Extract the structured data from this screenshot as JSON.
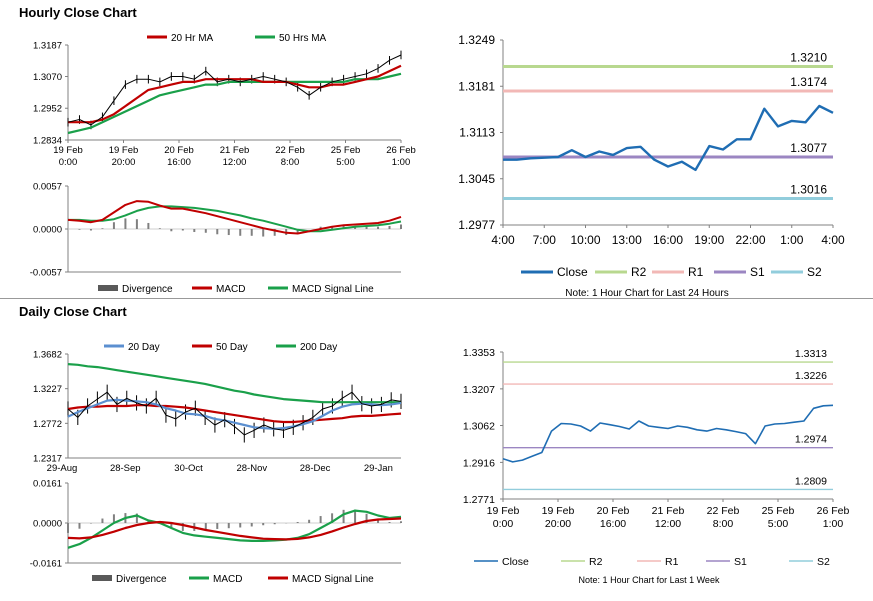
{
  "sections": {
    "hourly": {
      "title": "Hourly Close Chart"
    },
    "daily": {
      "title": "Daily Close Chart"
    }
  },
  "colors": {
    "close": "#1f6db3",
    "ma_short": "#c00000",
    "ma_long": "#1aa04a",
    "ma_20day": "#5b8fd0",
    "r2": "#b8d88f",
    "r1": "#f2b8b6",
    "s1": "#9b86c2",
    "s2": "#92cddc",
    "divergence": "#808080"
  },
  "chart_data": [
    {
      "id": "hourly_price",
      "type": "line",
      "ylim": [
        1.2834,
        1.3187
      ],
      "y_ticks": [
        "1.3187",
        "1.3070",
        "1.2952",
        "1.2834"
      ],
      "x_ticks": [
        [
          "19 Feb",
          "0:00"
        ],
        [
          "19 Feb",
          "20:00"
        ],
        [
          "20 Feb",
          "16:00"
        ],
        [
          "21 Feb",
          "12:00"
        ],
        [
          "22 Feb",
          "8:00"
        ],
        [
          "25 Feb",
          "5:00"
        ],
        [
          "26 Feb",
          "1:00"
        ]
      ],
      "legend": [
        "20 Hr MA",
        "50 Hrs MA"
      ],
      "series": [
        {
          "name": "Close",
          "values": [
            1.29,
            1.291,
            1.289,
            1.292,
            1.298,
            1.304,
            1.306,
            1.306,
            1.305,
            1.307,
            1.307,
            1.306,
            1.309,
            1.305,
            1.306,
            1.305,
            1.306,
            1.307,
            1.306,
            1.305,
            1.303,
            1.3,
            1.303,
            1.305,
            1.306,
            1.307,
            1.308,
            1.31,
            1.313,
            1.315
          ]
        },
        {
          "name": "20 Hr MA",
          "values": [
            1.29,
            1.29,
            1.29,
            1.291,
            1.293,
            1.296,
            1.299,
            1.302,
            1.303,
            1.304,
            1.305,
            1.305,
            1.306,
            1.306,
            1.306,
            1.306,
            1.306,
            1.305,
            1.305,
            1.305,
            1.304,
            1.303,
            1.303,
            1.304,
            1.304,
            1.305,
            1.306,
            1.307,
            1.309,
            1.311
          ]
        },
        {
          "name": "50 Hrs MA",
          "values": [
            1.286,
            1.287,
            1.288,
            1.29,
            1.292,
            1.294,
            1.296,
            1.298,
            1.3,
            1.301,
            1.302,
            1.303,
            1.304,
            1.304,
            1.305,
            1.305,
            1.305,
            1.305,
            1.305,
            1.305,
            1.305,
            1.305,
            1.305,
            1.305,
            1.305,
            1.306,
            1.306,
            1.306,
            1.307,
            1.308
          ]
        }
      ]
    },
    {
      "id": "hourly_macd",
      "type": "line",
      "ylim": [
        -0.0057,
        0.0057
      ],
      "y_ticks": [
        "0.0057",
        "0.0000",
        "-0.0057"
      ],
      "legend": [
        "Divergence",
        "MACD",
        "MACD Signal Line"
      ],
      "series": [
        {
          "name": "MACD",
          "values": [
            0.0012,
            0.0011,
            0.0009,
            0.0012,
            0.0022,
            0.0032,
            0.0037,
            0.0036,
            0.0031,
            0.0027,
            0.0027,
            0.0024,
            0.0021,
            0.0017,
            0.0013,
            0.0009,
            0.0005,
            0.0001,
            -0.0002,
            -0.0005,
            -0.0006,
            -0.0003,
            0.0,
            0.0003,
            0.0005,
            0.0006,
            0.0007,
            0.0008,
            0.0011,
            0.0016
          ]
        },
        {
          "name": "MACD Signal Line",
          "values": [
            0.0012,
            0.0012,
            0.0011,
            0.0011,
            0.0013,
            0.0018,
            0.0024,
            0.0028,
            0.003,
            0.003,
            0.0029,
            0.0028,
            0.0026,
            0.0024,
            0.0021,
            0.0018,
            0.0014,
            0.0011,
            0.0007,
            0.0003,
            -0.0001,
            -0.0003,
            -0.0003,
            -0.0001,
            0.0001,
            0.0003,
            0.0004,
            0.0005,
            0.0007,
            0.001
          ]
        },
        {
          "name": "Divergence",
          "values": [
            0.0,
            -0.0001,
            -0.0002,
            0.0001,
            0.0009,
            0.0014,
            0.0013,
            0.0008,
            0.0001,
            -0.0003,
            -0.0002,
            -0.0004,
            -0.0005,
            -0.0007,
            -0.0008,
            -0.0009,
            -0.0009,
            -0.001,
            -0.0009,
            -0.0008,
            -0.0005,
            0.0,
            0.0003,
            0.0004,
            0.0004,
            0.0003,
            0.0003,
            0.0003,
            0.0004,
            0.0006
          ]
        }
      ]
    },
    {
      "id": "hourly_levels",
      "type": "line",
      "ylim": [
        1.2977,
        1.3249
      ],
      "y_ticks": [
        "1.3249",
        "1.3181",
        "1.3113",
        "1.3045",
        "1.2977"
      ],
      "x_ticks": [
        "4:00",
        "7:00",
        "10:00",
        "13:00",
        "16:00",
        "19:00",
        "22:00",
        "1:00",
        "4:00"
      ],
      "levels": [
        {
          "name": "R2",
          "value": 1.321,
          "label": "1.3210"
        },
        {
          "name": "R1",
          "value": 1.3174,
          "label": "1.3174"
        },
        {
          "name": "S1",
          "value": 1.3077,
          "label": "1.3077"
        },
        {
          "name": "S2",
          "value": 1.3016,
          "label": "1.3016"
        }
      ],
      "series": [
        {
          "name": "Close",
          "values": [
            1.3073,
            1.3073,
            1.3075,
            1.3076,
            1.3077,
            1.3087,
            1.3077,
            1.3085,
            1.308,
            1.309,
            1.3092,
            1.3073,
            1.3063,
            1.307,
            1.3058,
            1.3093,
            1.3088,
            1.3103,
            1.3103,
            1.3148,
            1.3122,
            1.313,
            1.3128,
            1.3152,
            1.3142
          ]
        }
      ],
      "legend": [
        "Close",
        "R2",
        "R1",
        "S1",
        "S2"
      ],
      "note": "Note: 1 Hour Chart for Last 24 Hours"
    },
    {
      "id": "daily_price",
      "type": "line",
      "ylim": [
        1.2317,
        1.3682
      ],
      "y_ticks": [
        "1.3682",
        "1.3227",
        "1.2772",
        "1.2317"
      ],
      "x_ticks": [
        "29-Aug",
        "28-Sep",
        "30-Oct",
        "28-Nov",
        "28-Dec",
        "29-Jan"
      ],
      "legend": [
        "20 Day",
        "50 Day",
        "200 Day"
      ],
      "series": [
        {
          "name": "Close",
          "values": [
            1.296,
            1.285,
            1.3,
            1.309,
            1.318,
            1.302,
            1.31,
            1.304,
            1.3,
            1.31,
            1.288,
            1.283,
            1.292,
            1.297,
            1.285,
            1.275,
            1.282,
            1.273,
            1.262,
            1.268,
            1.275,
            1.27,
            1.268,
            1.272,
            1.278,
            1.285,
            1.296,
            1.3,
            1.31,
            1.318,
            1.303,
            1.3,
            1.302,
            1.308,
            1.306
          ]
        },
        {
          "name": "20 Day",
          "values": [
            1.286,
            1.292,
            1.297,
            1.302,
            1.307,
            1.308,
            1.307,
            1.306,
            1.305,
            1.302,
            1.297,
            1.294,
            1.29,
            1.289,
            1.287,
            1.283,
            1.281,
            1.278,
            1.275,
            1.272,
            1.271,
            1.27,
            1.271,
            1.273,
            1.276,
            1.28,
            1.287,
            1.294,
            1.299,
            1.302,
            1.303,
            1.302,
            1.301,
            1.302,
            1.304
          ]
        },
        {
          "name": "50 Day",
          "values": [
            1.296,
            1.298,
            1.299,
            1.299,
            1.3,
            1.3,
            1.3,
            1.301,
            1.301,
            1.3,
            1.3,
            1.299,
            1.298,
            1.296,
            1.294,
            1.292,
            1.29,
            1.288,
            1.286,
            1.284,
            1.282,
            1.28,
            1.279,
            1.279,
            1.28,
            1.281,
            1.282,
            1.283,
            1.284,
            1.286,
            1.287,
            1.287,
            1.288,
            1.289,
            1.29
          ]
        },
        {
          "name": "200 Day",
          "values": [
            1.355,
            1.354,
            1.352,
            1.351,
            1.349,
            1.347,
            1.345,
            1.343,
            1.341,
            1.339,
            1.337,
            1.335,
            1.333,
            1.331,
            1.329,
            1.326,
            1.323,
            1.32,
            1.318,
            1.315,
            1.313,
            1.311,
            1.309,
            1.308,
            1.307,
            1.306,
            1.305,
            1.305,
            1.305,
            1.305,
            1.305,
            1.305,
            1.305,
            1.305,
            1.305
          ]
        }
      ]
    },
    {
      "id": "daily_macd",
      "type": "line",
      "ylim": [
        -0.0161,
        0.0161
      ],
      "y_ticks": [
        "0.0161",
        "0.0000",
        "-0.0161"
      ],
      "legend": [
        "Divergence",
        "MACD",
        "MACD Signal Line"
      ],
      "series": [
        {
          "name": "MACD",
          "values": [
            -0.01,
            -0.0085,
            -0.006,
            -0.003,
            0.0,
            0.002,
            0.003,
            0.001,
            0.0,
            -0.002,
            -0.004,
            -0.005,
            -0.0055,
            -0.006,
            -0.0065,
            -0.007,
            -0.0072,
            -0.0072,
            -0.007,
            -0.0067,
            -0.006,
            -0.0045,
            -0.002,
            0.0005,
            0.0035,
            0.005,
            0.0045,
            0.003,
            0.002,
            0.0025
          ]
        },
        {
          "name": "MACD Signal Line",
          "values": [
            -0.006,
            -0.0062,
            -0.0058,
            -0.0048,
            -0.0035,
            -0.002,
            -0.0008,
            0.0,
            0.0004,
            0.0,
            -0.0008,
            -0.0018,
            -0.0028,
            -0.0036,
            -0.0044,
            -0.0052,
            -0.0058,
            -0.0063,
            -0.0065,
            -0.0066,
            -0.0064,
            -0.0058,
            -0.0048,
            -0.0034,
            -0.0018,
            -0.0004,
            0.0008,
            0.0014,
            0.0016,
            0.0018
          ]
        },
        {
          "name": "Divergence",
          "values": [
            -0.004,
            -0.0023,
            -0.0002,
            0.0018,
            0.0035,
            0.004,
            0.0038,
            0.001,
            -0.0004,
            -0.002,
            -0.0032,
            -0.0032,
            -0.0027,
            -0.0024,
            -0.0021,
            -0.0018,
            -0.0014,
            -0.0009,
            -0.0005,
            -0.0001,
            0.0004,
            0.0013,
            0.0028,
            0.0039,
            0.0053,
            0.0054,
            0.0037,
            0.0016,
            0.0004,
            0.0007
          ]
        }
      ]
    },
    {
      "id": "daily_levels",
      "type": "line",
      "ylim": [
        1.2771,
        1.3353
      ],
      "y_ticks": [
        "1.3353",
        "1.3207",
        "1.3062",
        "1.2916",
        "1.2771"
      ],
      "x_ticks": [
        [
          "19 Feb",
          "0:00"
        ],
        [
          "19 Feb",
          "20:00"
        ],
        [
          "20 Feb",
          "16:00"
        ],
        [
          "21 Feb",
          "12:00"
        ],
        [
          "22 Feb",
          "8:00"
        ],
        [
          "25 Feb",
          "5:00"
        ],
        [
          "26 Feb",
          "1:00"
        ]
      ],
      "levels": [
        {
          "name": "R2",
          "value": 1.3313,
          "label": "1.3313"
        },
        {
          "name": "R1",
          "value": 1.3226,
          "label": "1.3226"
        },
        {
          "name": "S1",
          "value": 1.2974,
          "label": "1.2974"
        },
        {
          "name": "S2",
          "value": 1.2809,
          "label": "1.2809"
        }
      ],
      "series": [
        {
          "name": "Close",
          "values": [
            1.293,
            1.2918,
            1.2925,
            1.294,
            1.2955,
            1.304,
            1.307,
            1.3068,
            1.306,
            1.304,
            1.3072,
            1.3065,
            1.3058,
            1.3048,
            1.308,
            1.306,
            1.3055,
            1.305,
            1.306,
            1.3055,
            1.3045,
            1.304,
            1.305,
            1.3045,
            1.3038,
            1.303,
            1.299,
            1.306,
            1.3068,
            1.307,
            1.3075,
            1.308,
            1.313,
            1.314,
            1.3142
          ]
        }
      ],
      "legend": [
        "Close",
        "R2",
        "R1",
        "S1",
        "S2"
      ],
      "note": "Note: 1 Hour Chart for Last 1 Week"
    }
  ]
}
